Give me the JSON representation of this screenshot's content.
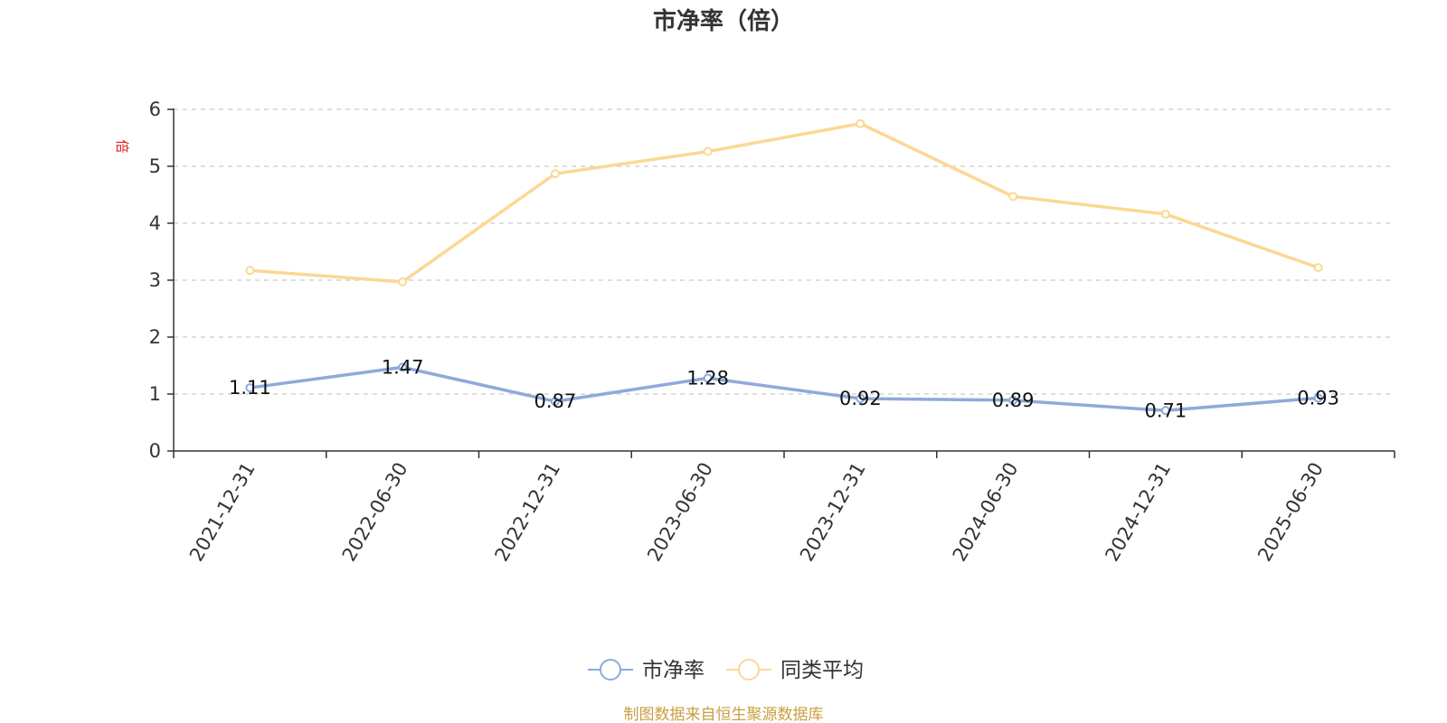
{
  "chart_data": {
    "type": "line",
    "title": "市净率（倍）",
    "ylabel": "倍",
    "ylim": [
      0,
      6
    ],
    "yticks": [
      0,
      1,
      2,
      3,
      4,
      5,
      6
    ],
    "grid": true,
    "legend_position": "bottom",
    "categories": [
      "2021-12-31",
      "2022-06-30",
      "2022-12-31",
      "2023-06-30",
      "2023-12-31",
      "2024-06-30",
      "2024-12-31",
      "2025-06-30"
    ],
    "series": [
      {
        "name": "市净率",
        "color": "#8eaad9",
        "values": [
          1.11,
          1.47,
          0.87,
          1.28,
          0.92,
          0.89,
          0.71,
          0.93
        ],
        "labels": [
          "1.11",
          "1.47",
          "0.87",
          "1.28",
          "0.92",
          "0.89",
          "0.71",
          "0.93"
        ]
      },
      {
        "name": "同类平均",
        "color": "#fbd894",
        "values": [
          3.17,
          2.97,
          4.87,
          5.26,
          5.75,
          4.47,
          4.16,
          3.22
        ]
      }
    ]
  },
  "colors": {
    "ylabel": "#e02020",
    "grid": "#cccccc",
    "axis": "#333333",
    "source": "#c8a040"
  },
  "source_note": "制图数据来自恒生聚源数据库"
}
